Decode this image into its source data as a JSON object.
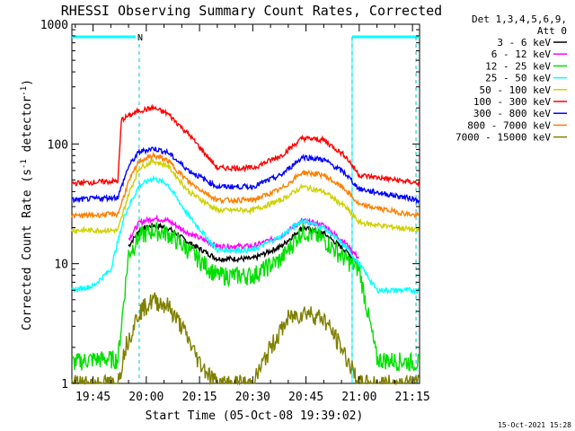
{
  "chart_data": {
    "type": "line",
    "title": "RHESSI Observing Summary Count Rates, Corrected",
    "xlabel": "Start Time (05-Oct-08 19:39:02)",
    "ylabel": "Corrected Count Rate (s",
    "ylabel_sup": "-1",
    "ylabel_tail": " detector",
    "ylabel_close": ")",
    "y_scale": "log",
    "ylim": [
      1,
      1000
    ],
    "xlim": [
      "19:39:02",
      "21:17:00"
    ],
    "yticks": [
      {
        "value": 1,
        "label": "1"
      },
      {
        "value": 10,
        "label": "10"
      },
      {
        "value": 100,
        "label": "100"
      },
      {
        "value": 1000,
        "label": "1000"
      }
    ],
    "xticks": [
      {
        "value": "19:45",
        "label": "19:45"
      },
      {
        "value": "20:00",
        "label": "20:00"
      },
      {
        "value": "20:15",
        "label": "20:15"
      },
      {
        "value": "20:30",
        "label": "20:30"
      },
      {
        "value": "20:45",
        "label": "20:45"
      },
      {
        "value": "21:00",
        "label": "21:00"
      },
      {
        "value": "21:15",
        "label": "21:15"
      }
    ],
    "legend_header": [
      "Det 1,3,4,5,6,9,",
      "Att 0"
    ],
    "legend_position": "outside-right",
    "series": [
      {
        "name": "3 - 6 keV",
        "color": "#000000",
        "x": [
          "19:55",
          "19:58",
          "20:02",
          "20:06",
          "20:12",
          "20:20",
          "20:30",
          "20:38",
          "20:44",
          "20:50",
          "20:56",
          "21:00"
        ],
        "y": [
          14,
          19,
          21,
          20,
          15,
          11,
          11,
          14,
          20,
          18,
          13,
          10
        ]
      },
      {
        "name": "6 - 12 keV",
        "color": "#ff00ff",
        "x": [
          "19:55",
          "19:58",
          "20:02",
          "20:06",
          "20:12",
          "20:20",
          "20:30",
          "20:38",
          "20:44",
          "20:50",
          "20:56",
          "21:00"
        ],
        "y": [
          16,
          22,
          24,
          23,
          18,
          14,
          14,
          17,
          23,
          21,
          15,
          11
        ]
      },
      {
        "name": "12 - 25 keV",
        "color": "#00e000",
        "x": [
          "19:39",
          "19:45",
          "19:52",
          "19:55",
          "19:58",
          "20:02",
          "20:06",
          "20:12",
          "20:20",
          "20:30",
          "20:38",
          "20:44",
          "20:50",
          "20:56",
          "21:00",
          "21:05",
          "21:17"
        ],
        "y": [
          1.5,
          1.6,
          1.6,
          12,
          17,
          19,
          18,
          13,
          8,
          8,
          11,
          19,
          16,
          11,
          9,
          1.6,
          1.5
        ]
      },
      {
        "name": "25 - 50 keV",
        "color": "#00ffff",
        "x": [
          "19:39",
          "19:45",
          "19:50",
          "19:54",
          "19:58",
          "20:02",
          "20:06",
          "20:12",
          "20:20",
          "20:30",
          "20:38",
          "20:44",
          "20:50",
          "20:56",
          "21:00",
          "21:05",
          "21:17"
        ],
        "y": [
          6,
          6.5,
          9,
          26,
          45,
          52,
          46,
          25,
          13,
          13,
          17,
          23,
          20,
          14,
          10,
          6,
          6
        ]
      },
      {
        "name": "50 - 100 keV",
        "color": "#d0d000",
        "x": [
          "19:39",
          "19:52",
          "19:55",
          "19:58",
          "20:02",
          "20:06",
          "20:12",
          "20:20",
          "20:30",
          "20:38",
          "20:44",
          "20:50",
          "20:56",
          "21:00",
          "21:17"
        ],
        "y": [
          19,
          19,
          38,
          63,
          72,
          66,
          40,
          28,
          28,
          34,
          44,
          40,
          30,
          22,
          19
        ]
      },
      {
        "name": "100 - 300 keV",
        "color": "#ff0000",
        "x": [
          "19:39",
          "19:52",
          "19:53",
          "19:58",
          "20:02",
          "20:06",
          "20:12",
          "20:20",
          "20:30",
          "20:38",
          "20:44",
          "20:50",
          "20:56",
          "21:00",
          "21:17"
        ],
        "y": [
          47,
          49,
          160,
          190,
          200,
          180,
          120,
          63,
          63,
          80,
          112,
          108,
          80,
          55,
          47
        ]
      },
      {
        "name": "300 - 800 keV",
        "color": "#0000ff",
        "x": [
          "19:39",
          "19:52",
          "19:55",
          "19:58",
          "20:02",
          "20:06",
          "20:12",
          "20:20",
          "20:30",
          "20:38",
          "20:44",
          "20:50",
          "20:56",
          "21:00",
          "21:17"
        ],
        "y": [
          34,
          36,
          65,
          86,
          92,
          85,
          60,
          44,
          44,
          55,
          78,
          74,
          57,
          42,
          34
        ]
      },
      {
        "name": "800 - 7000 keV",
        "color": "#ff8000",
        "x": [
          "19:39",
          "19:52",
          "19:55",
          "19:58",
          "20:02",
          "20:06",
          "20:12",
          "20:20",
          "20:30",
          "20:38",
          "20:44",
          "20:50",
          "20:56",
          "21:00",
          "21:17"
        ],
        "y": [
          25,
          26,
          48,
          72,
          80,
          73,
          48,
          34,
          34,
          42,
          58,
          55,
          42,
          31,
          25
        ]
      },
      {
        "name": "7000 - 15000 keV",
        "color": "#808000",
        "x": [
          "19:39",
          "19:52",
          "19:54",
          "19:58",
          "20:02",
          "20:06",
          "20:10",
          "20:15",
          "20:20",
          "20:30",
          "20:35",
          "20:40",
          "20:45",
          "20:50",
          "20:55",
          "21:00",
          "21:17"
        ],
        "y": [
          1,
          1,
          2,
          4,
          5,
          4.5,
          3,
          1.5,
          1,
          1,
          2,
          3.5,
          4,
          3.5,
          2,
          1,
          1
        ]
      }
    ],
    "markers": {
      "top_bar_label": "N",
      "bars": [
        {
          "start": "19:39",
          "end": "19:57"
        },
        {
          "start": "20:58",
          "end": "21:17"
        }
      ],
      "vertical_lines": [
        "19:58",
        "20:58",
        "21:16"
      ]
    },
    "footer_timestamp": "15-Oct-2021 15:28"
  }
}
